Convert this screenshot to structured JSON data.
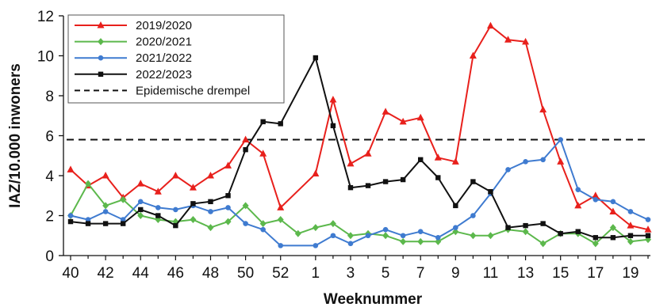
{
  "chart_data": {
    "type": "line",
    "xlabel": "Weeknummer",
    "ylabel": "IAZ/10.000 inwoners",
    "ylim": [
      0,
      12
    ],
    "yticks": [
      0,
      2,
      4,
      6,
      8,
      10,
      12
    ],
    "weeks": [
      40,
      41,
      42,
      43,
      44,
      45,
      46,
      47,
      48,
      49,
      50,
      51,
      52,
      1,
      2,
      3,
      4,
      5,
      6,
      7,
      8,
      9,
      10,
      11,
      12,
      13,
      14,
      15,
      16,
      17,
      18,
      19,
      20
    ],
    "xtick_labels": [
      "40",
      "42",
      "44",
      "46",
      "48",
      "50",
      "52",
      "1",
      "3",
      "5",
      "7",
      "9",
      "11",
      "13",
      "15",
      "17",
      "19"
    ],
    "grid": false,
    "legend_position": "top-left",
    "threshold": {
      "name": "Epidemische drempel",
      "value": 5.8,
      "style": "dashed",
      "color": "#111111"
    },
    "series": [
      {
        "name": "2019/2020",
        "color": "#e8201c",
        "marker": "triangle",
        "x": [
          40,
          41,
          42,
          43,
          44,
          45,
          46,
          47,
          48,
          49,
          50,
          51,
          52,
          1,
          2,
          3,
          4,
          5,
          6,
          7,
          8,
          9,
          10,
          11,
          12,
          13,
          14,
          15,
          16,
          17,
          18,
          19,
          20
        ],
        "values": [
          4.3,
          3.5,
          4.0,
          2.9,
          3.6,
          3.2,
          4.0,
          3.4,
          4.0,
          4.5,
          5.8,
          5.1,
          2.4,
          4.1,
          7.8,
          4.6,
          5.1,
          7.2,
          6.7,
          6.9,
          4.9,
          4.7,
          10.0,
          11.5,
          10.8,
          10.7,
          7.3,
          4.7,
          2.5,
          3.0,
          2.2,
          1.5,
          1.3
        ]
      },
      {
        "name": "2020/2021",
        "color": "#5cb84c",
        "marker": "diamond",
        "x": [
          40,
          41,
          42,
          43,
          44,
          45,
          46,
          47,
          48,
          49,
          50,
          51,
          52,
          53,
          1,
          2,
          3,
          4,
          5,
          6,
          7,
          8,
          9,
          10,
          11,
          12,
          13,
          14,
          15,
          16,
          17,
          18,
          19,
          20
        ],
        "values": [
          2.0,
          3.6,
          2.5,
          2.8,
          2.0,
          1.8,
          1.7,
          1.8,
          1.4,
          1.7,
          2.5,
          1.6,
          1.8,
          1.1,
          1.4,
          1.6,
          1.0,
          1.1,
          1.0,
          0.7,
          0.7,
          0.7,
          1.2,
          1.0,
          1.0,
          1.3,
          1.2,
          0.6,
          1.1,
          1.1,
          0.6,
          1.4,
          0.7,
          0.8
        ]
      },
      {
        "name": "2021/2022",
        "color": "#3f7bd0",
        "marker": "circle",
        "x": [
          40,
          41,
          42,
          43,
          44,
          45,
          46,
          47,
          48,
          49,
          50,
          51,
          52,
          1,
          2,
          3,
          4,
          5,
          6,
          7,
          8,
          9,
          10,
          11,
          12,
          13,
          14,
          15,
          16,
          17,
          18,
          19,
          20
        ],
        "values": [
          2.0,
          1.8,
          2.2,
          1.8,
          2.7,
          2.4,
          2.3,
          2.5,
          2.2,
          2.4,
          1.6,
          1.3,
          0.5,
          0.5,
          1.0,
          0.6,
          1.0,
          1.3,
          1.0,
          1.2,
          0.9,
          1.4,
          2.0,
          3.1,
          4.3,
          4.7,
          4.8,
          5.8,
          3.3,
          2.8,
          2.7,
          2.2,
          1.8
        ]
      },
      {
        "name": "2022/2023",
        "color": "#111111",
        "marker": "square",
        "x": [
          40,
          41,
          42,
          43,
          44,
          45,
          46,
          47,
          48,
          49,
          50,
          51,
          52,
          1,
          2,
          3,
          4,
          5,
          6,
          7,
          8,
          9,
          10,
          11,
          12,
          13,
          14,
          15,
          16,
          17,
          18,
          19,
          20
        ],
        "values": [
          1.7,
          1.6,
          1.6,
          1.6,
          2.3,
          2.0,
          1.5,
          2.6,
          2.7,
          3.0,
          5.3,
          6.7,
          6.6,
          9.9,
          6.5,
          3.4,
          3.5,
          3.7,
          3.8,
          4.8,
          3.9,
          2.5,
          3.7,
          3.2,
          1.4,
          1.5,
          1.6,
          1.1,
          1.2,
          0.9,
          0.9,
          1.0,
          1.0
        ]
      }
    ]
  }
}
